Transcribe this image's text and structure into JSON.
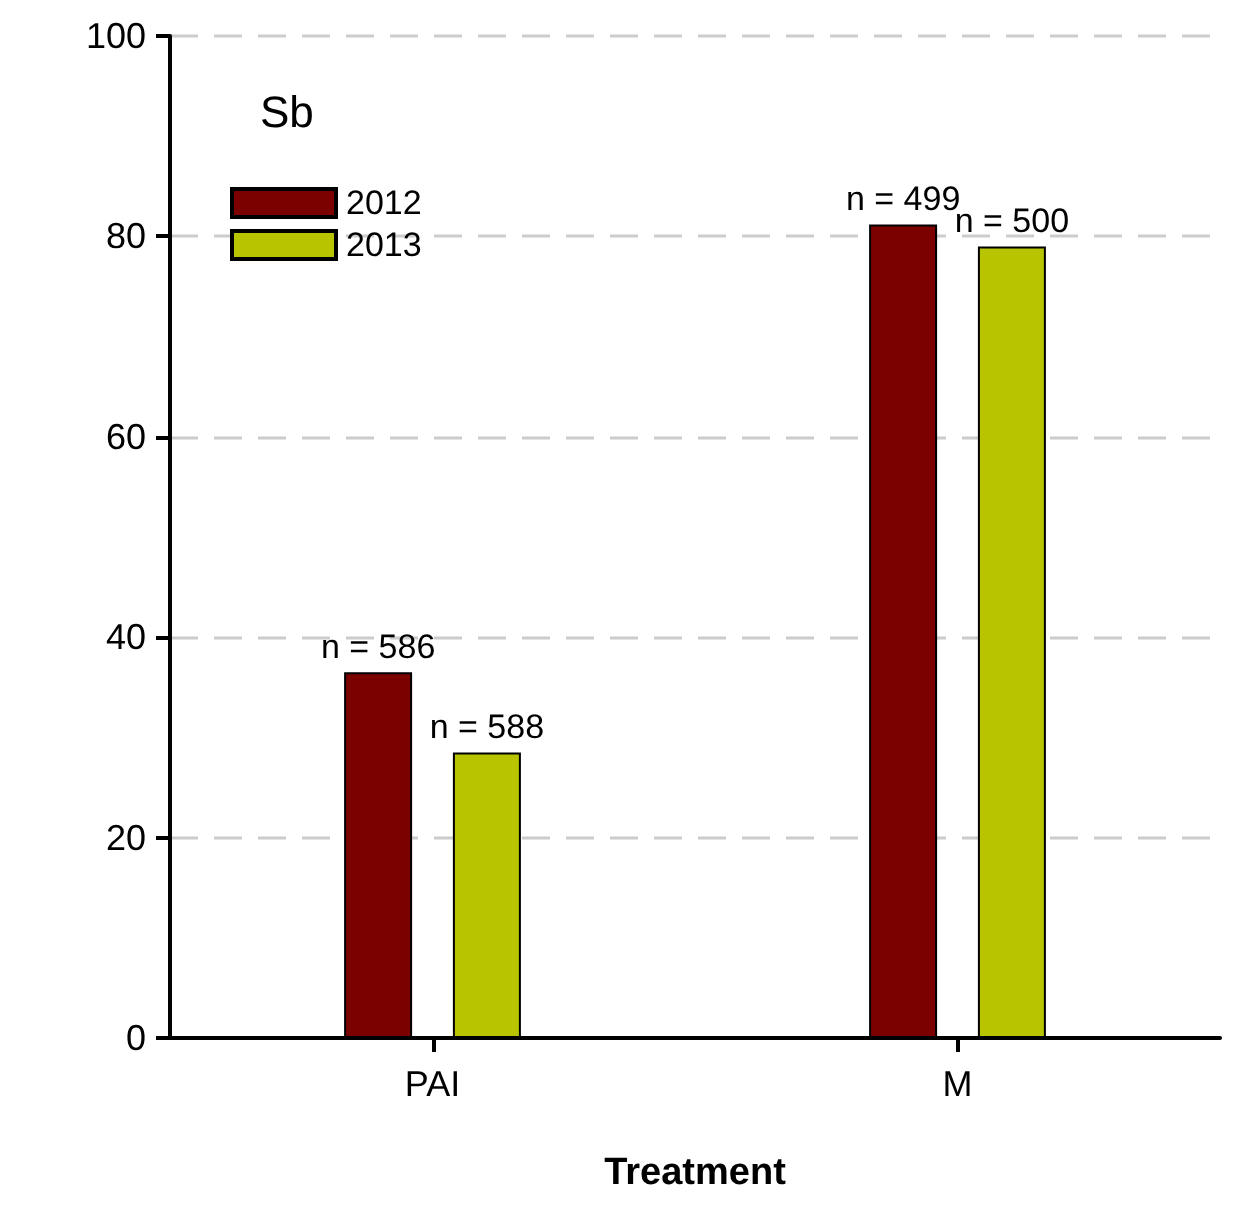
{
  "chart_data": {
    "type": "bar",
    "title": "Sb",
    "xlabel": "Treatment",
    "categories": [
      "PAI",
      "M"
    ],
    "series": [
      {
        "name": "2012",
        "color": "#7b0000",
        "values": [
          36.5,
          81.2
        ]
      },
      {
        "name": "2013",
        "color": "#b8c400",
        "values": [
          28.5,
          79.0
        ]
      }
    ],
    "annotations": [
      "n = 586",
      "n = 588",
      "n = 499",
      "n = 500"
    ],
    "ylim": [
      0,
      100
    ],
    "yticks": [
      0,
      20,
      40,
      60,
      80,
      100
    ],
    "grid": "y",
    "legend": "top left"
  }
}
